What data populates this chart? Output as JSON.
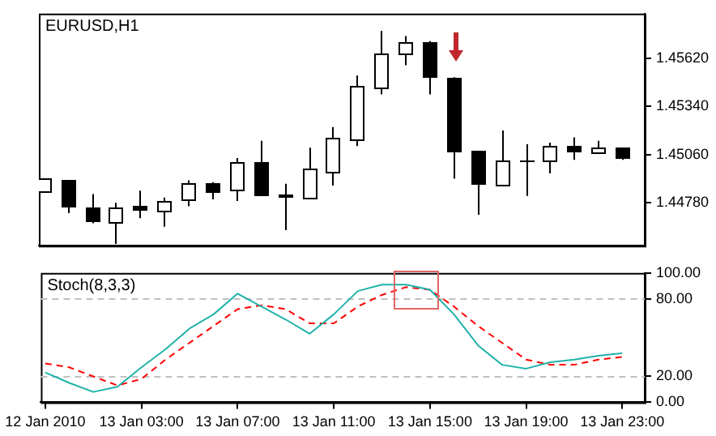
{
  "chart_data": [
    {
      "type": "candlestick",
      "title": "EURUSD,H1",
      "x": [
        "2010-01-12T23:00",
        "2010-01-13T00:00",
        "2010-01-13T01:00",
        "2010-01-13T02:00",
        "2010-01-13T03:00",
        "2010-01-13T04:00",
        "2010-01-13T05:00",
        "2010-01-13T06:00",
        "2010-01-13T07:00",
        "2010-01-13T08:00",
        "2010-01-13T09:00",
        "2010-01-13T10:00",
        "2010-01-13T11:00",
        "2010-01-13T12:00",
        "2010-01-13T13:00",
        "2010-01-13T14:00",
        "2010-01-13T15:00",
        "2010-01-13T16:00",
        "2010-01-13T17:00",
        "2010-01-13T18:00",
        "2010-01-13T19:00",
        "2010-01-13T20:00",
        "2010-01-13T21:00",
        "2010-01-13T22:00",
        "2010-01-13T23:00"
      ],
      "ohlc": [
        [
          1.4485,
          1.4492,
          1.4485,
          1.4492
        ],
        [
          1.4491,
          1.4491,
          1.4472,
          1.4475
        ],
        [
          1.4475,
          1.4483,
          1.4466,
          1.4467
        ],
        [
          1.4467,
          1.4478,
          1.4454,
          1.4475
        ],
        [
          1.4476,
          1.4485,
          1.4469,
          1.4473
        ],
        [
          1.4473,
          1.4481,
          1.4464,
          1.4479
        ],
        [
          1.448,
          1.4491,
          1.4476,
          1.4489
        ],
        [
          1.4489,
          1.449,
          1.448,
          1.4484
        ],
        [
          1.4486,
          1.4504,
          1.4479,
          1.4502
        ],
        [
          1.4502,
          1.4514,
          1.4482,
          1.4482
        ],
        [
          1.4483,
          1.4489,
          1.4462,
          1.4481
        ],
        [
          1.4481,
          1.451,
          1.448,
          1.4498
        ],
        [
          1.4496,
          1.4522,
          1.4488,
          1.4516
        ],
        [
          1.4515,
          1.4552,
          1.4511,
          1.4546
        ],
        [
          1.4545,
          1.4578,
          1.4541,
          1.4565
        ],
        [
          1.4565,
          1.4575,
          1.4558,
          1.4571
        ],
        [
          1.4571,
          1.4572,
          1.4541,
          1.4551
        ],
        [
          1.4551,
          1.4551,
          1.4492,
          1.4507
        ],
        [
          1.4508,
          1.4508,
          1.4471,
          1.4488
        ],
        [
          1.4488,
          1.452,
          1.4488,
          1.4503
        ],
        [
          1.4503,
          1.4512,
          1.4482,
          1.4503
        ],
        [
          1.4503,
          1.4513,
          1.4495,
          1.4511
        ],
        [
          1.4511,
          1.4516,
          1.4503,
          1.4507
        ],
        [
          1.4507,
          1.4514,
          1.4507,
          1.451
        ],
        [
          1.451,
          1.451,
          1.4503,
          1.4504
        ]
      ],
      "xlim": [
        "2010-01-12T22:49",
        "2010-01-13T23:56"
      ],
      "ylim": [
        1.4453,
        1.4588
      ],
      "yticks": [
        {
          "value": 1.4478,
          "label": "1.44780"
        },
        {
          "value": 1.4506,
          "label": "1.45060"
        },
        {
          "value": 1.4534,
          "label": "1.45340"
        },
        {
          "value": 1.4562,
          "label": "1.45620"
        }
      ],
      "tick_labels": "y"
    },
    {
      "type": "line",
      "title": "Stoch(8,3,3)",
      "x": [
        "2010-01-12T23:00",
        "2010-01-13T00:00",
        "2010-01-13T01:00",
        "2010-01-13T02:00",
        "2010-01-13T03:00",
        "2010-01-13T04:00",
        "2010-01-13T05:00",
        "2010-01-13T06:00",
        "2010-01-13T07:00",
        "2010-01-13T08:00",
        "2010-01-13T09:00",
        "2010-01-13T10:00",
        "2010-01-13T11:00",
        "2010-01-13T12:00",
        "2010-01-13T13:00",
        "2010-01-13T14:00",
        "2010-01-13T15:00",
        "2010-01-13T16:00",
        "2010-01-13T17:00",
        "2010-01-13T18:00",
        "2010-01-13T19:00",
        "2010-01-13T20:00",
        "2010-01-13T21:00",
        "2010-01-13T22:00",
        "2010-01-13T23:00"
      ],
      "series": [
        {
          "color": "#20b2aa",
          "line_style": "solid",
          "values": [
            23,
            15,
            8,
            12,
            27,
            41,
            57,
            68,
            84,
            74,
            64,
            53,
            68,
            86,
            91,
            91,
            87,
            68,
            44,
            29,
            26,
            31,
            33,
            36,
            38
          ]
        },
        {
          "color": "#ff0000",
          "line_style": "dashed",
          "values": [
            30,
            27,
            20,
            13,
            18,
            33,
            46,
            59,
            72,
            75,
            72,
            61,
            61,
            74,
            83,
            89,
            87,
            74,
            59,
            46,
            33,
            29,
            29,
            33,
            35
          ]
        }
      ],
      "xlim": [
        "2010-01-12T22:49",
        "2010-01-13T23:56"
      ],
      "xticks": [
        {
          "value": "2010-01-12T23:00",
          "label": "12 Jan 2010"
        },
        {
          "value": "2010-01-13T03:00",
          "label": "13 Jan 03:00"
        },
        {
          "value": "2010-01-13T07:00",
          "label": "13 Jan 07:00"
        },
        {
          "value": "2010-01-13T11:00",
          "label": "13 Jan 11:00"
        },
        {
          "value": "2010-01-13T15:00",
          "label": "13 Jan 15:00"
        },
        {
          "value": "2010-01-13T19:00",
          "label": "13 Jan 19:00"
        },
        {
          "value": "2010-01-13T23:00",
          "label": "13 Jan 23:00"
        }
      ],
      "ylim": [
        0,
        100
      ],
      "yticks": [
        {
          "value": 0,
          "label": "0.00"
        },
        {
          "value": 20,
          "label": "20.00"
        },
        {
          "value": 80,
          "label": "80.00"
        },
        {
          "value": 100,
          "label": "100.00"
        }
      ],
      "ref_lines": [
        {
          "axis": "y",
          "value": 20,
          "color": "#c0c0c0",
          "line_style": "dashed"
        },
        {
          "axis": "y",
          "value": 80,
          "color": "#c0c0c0",
          "line_style": "dashed"
        }
      ],
      "marker": "none"
    }
  ]
}
